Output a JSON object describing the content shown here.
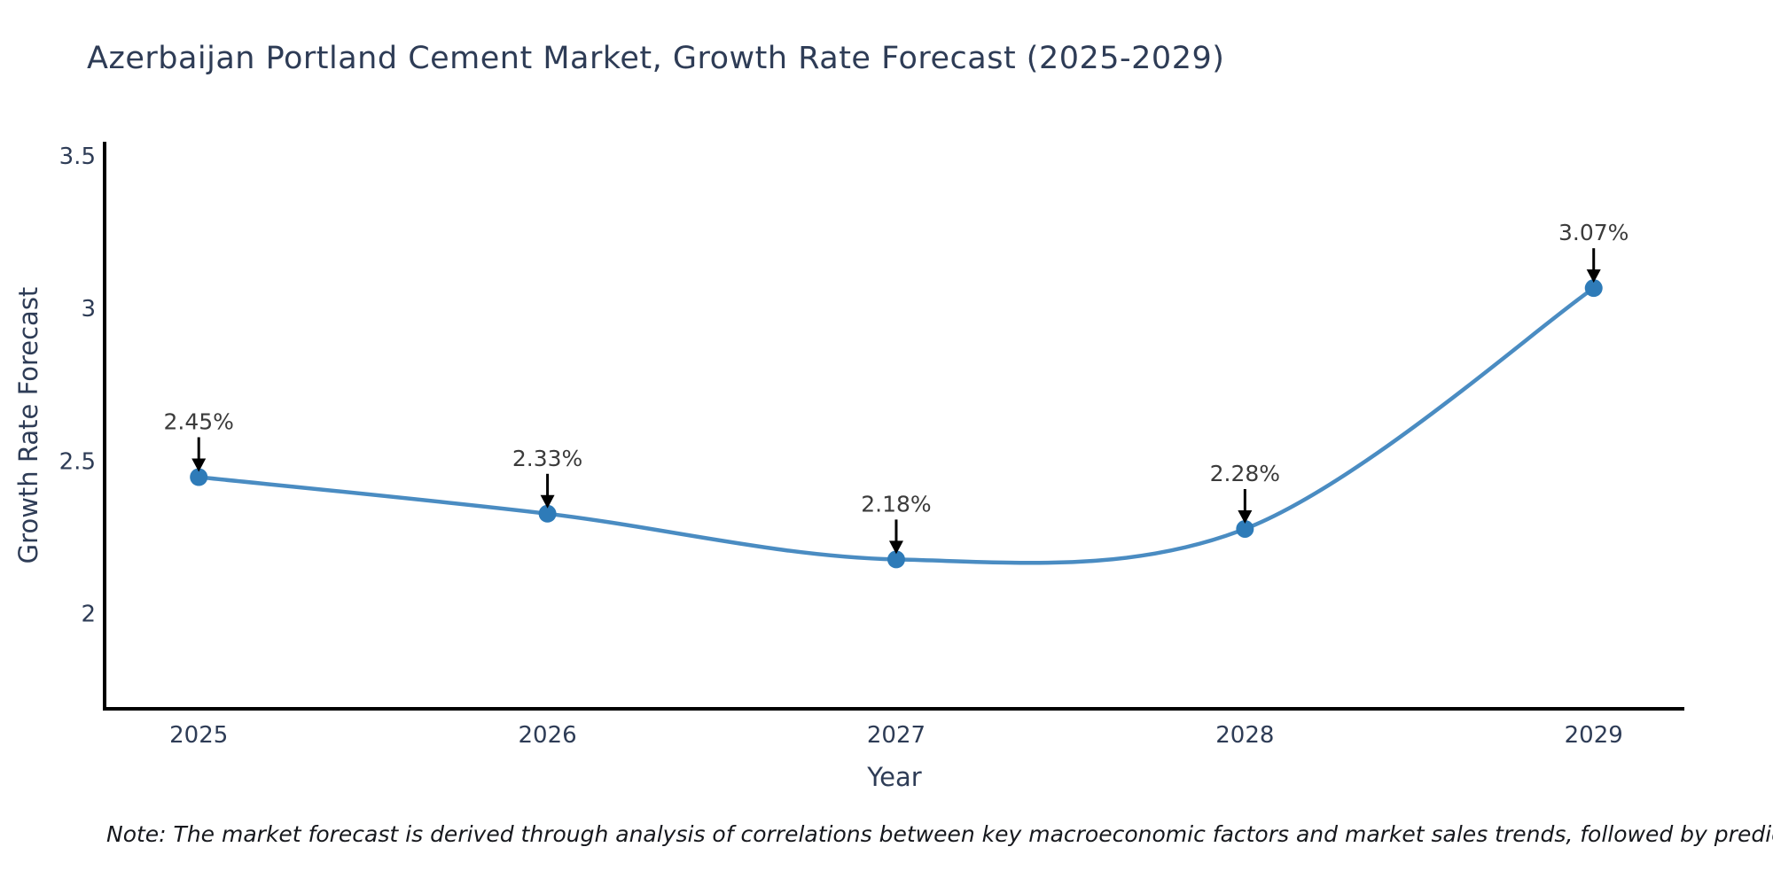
{
  "header": {
    "title": "Azerbaijan Portland Cement Market, Growth Rate Forecast (2025-2029)"
  },
  "footnote": {
    "text": "Note: The market forecast is derived through analysis of correlations between key macroeconomic factors and market sales trends, followed by predictive modeling to project future sales"
  },
  "chart_data": {
    "type": "line",
    "title": "Azerbaijan Portland Cement Market, Growth Rate Forecast (2025-2029)",
    "xlabel": "Year",
    "ylabel": "Growth Rate Forecast",
    "x": [
      2025,
      2026,
      2027,
      2028,
      2029
    ],
    "series": [
      {
        "name": "Growth Rate Forecast",
        "values": [
          2.45,
          2.33,
          2.18,
          2.28,
          3.07
        ]
      }
    ],
    "point_labels": [
      "2.45%",
      "2.33%",
      "2.18%",
      "2.28%",
      "3.07%"
    ],
    "xtick_labels": [
      "2025",
      "2026",
      "2027",
      "2028",
      "2029"
    ],
    "yticks": [
      2,
      2.5,
      3,
      3.5
    ],
    "ytick_labels": [
      "2",
      "2.5",
      "3",
      "3.5"
    ],
    "xlim": [
      2024.73,
      2029.26
    ],
    "ylim": [
      1.69,
      3.55
    ],
    "grid": false,
    "legend": "none",
    "line_shape": "spline",
    "annotations_style": "value above point with downward black arrow",
    "colors": {
      "line": "#4a8cc2",
      "marker": "#2e7bb8",
      "axis": "#000000",
      "tick_text": "#2e3c56",
      "title_text": "#2e3c56",
      "annotation_text": "#3b3b3b",
      "arrow": "#000000",
      "background": "#ffffff"
    }
  }
}
